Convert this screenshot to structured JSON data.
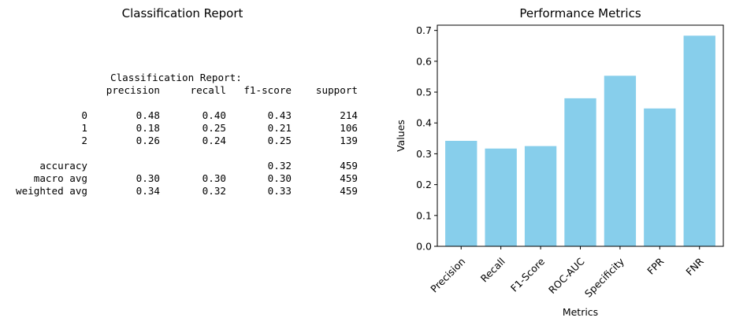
{
  "report_panel": {
    "title": "Classification Report",
    "heading": "Classification Report:",
    "columns": [
      "precision",
      "recall",
      "f1-score",
      "support"
    ],
    "rows": [
      {
        "label": "0",
        "precision": "0.48",
        "recall": "0.40",
        "f1": "0.43",
        "support": "214"
      },
      {
        "label": "1",
        "precision": "0.18",
        "recall": "0.25",
        "f1": "0.21",
        "support": "106"
      },
      {
        "label": "2",
        "precision": "0.26",
        "recall": "0.24",
        "f1": "0.25",
        "support": "139"
      },
      null,
      {
        "label": "accuracy",
        "precision": "",
        "recall": "",
        "f1": "0.32",
        "support": "459"
      },
      {
        "label": "macro avg",
        "precision": "0.30",
        "recall": "0.30",
        "f1": "0.30",
        "support": "459"
      },
      {
        "label": "weighted avg",
        "precision": "0.34",
        "recall": "0.32",
        "f1": "0.33",
        "support": "459"
      }
    ]
  },
  "chart_data": {
    "type": "bar",
    "title": "Performance Metrics",
    "xlabel": "Metrics",
    "ylabel": "Values",
    "categories": [
      "Precision",
      "Recall",
      "F1-Score",
      "ROC-AUC",
      "Specificity",
      "FPR",
      "FNR"
    ],
    "values": [
      0.342,
      0.317,
      0.325,
      0.48,
      0.553,
      0.447,
      0.683
    ],
    "ylim": [
      0,
      0.717
    ],
    "yticks": [
      0.0,
      0.1,
      0.2,
      0.3,
      0.4,
      0.5,
      0.6,
      0.7
    ],
    "ytick_labels": [
      "0.0",
      "0.1",
      "0.2",
      "0.3",
      "0.4",
      "0.5",
      "0.6",
      "0.7"
    ],
    "bar_color": "#87ceeb",
    "grid": false
  }
}
